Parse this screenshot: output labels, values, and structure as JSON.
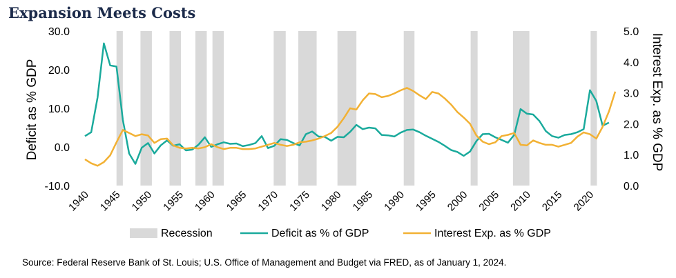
{
  "chart_data": {
    "type": "line",
    "title": "Expansion Meets Costs",
    "ylabel": "Deficit as % GDP",
    "y2label": "Interest Exp. as % GDP",
    "ylim": [
      -10,
      30
    ],
    "y2lim": [
      0,
      5
    ],
    "xlim": [
      1940,
      2024
    ],
    "yticks": [
      "-10.0",
      "0.0",
      "10.0",
      "20.0",
      "30.0"
    ],
    "y2ticks": [
      "0.0",
      "1.0",
      "2.0",
      "3.0",
      "4.0",
      "5.0"
    ],
    "xticks": [
      "1940",
      "1945",
      "1950",
      "1955",
      "1960",
      "1965",
      "1970",
      "1975",
      "1980",
      "1985",
      "1990",
      "1995",
      "2000",
      "2005",
      "2010",
      "2015",
      "2020"
    ],
    "legend_position": "bottom",
    "legend": [
      "Recession",
      "Deficit as % of GDP",
      "Interest Exp. as % GDP"
    ],
    "recessions": [
      [
        1945,
        1946
      ],
      [
        1948.8,
        1950.6
      ],
      [
        1953.4,
        1955.2
      ],
      [
        1957.5,
        1959.3
      ],
      [
        1960.2,
        1962
      ],
      [
        1969.9,
        1971.8
      ],
      [
        1973.8,
        1976.7
      ],
      [
        1980,
        1983
      ],
      [
        1990.5,
        1992.2
      ],
      [
        2001.1,
        2002.2
      ],
      [
        2007.8,
        2010.4
      ],
      [
        2020.1,
        2021.1
      ]
    ],
    "series": [
      {
        "name": "Deficit as % of GDP",
        "axis": "left",
        "color": "#1aaa9c",
        "x": [
          1940,
          1941,
          1942,
          1943,
          1944,
          1945,
          1946,
          1947,
          1948,
          1949,
          1950,
          1951,
          1952,
          1953,
          1954,
          1955,
          1956,
          1957,
          1958,
          1959,
          1960,
          1961,
          1962,
          1963,
          1964,
          1965,
          1966,
          1967,
          1968,
          1969,
          1970,
          1971,
          1972,
          1973,
          1974,
          1975,
          1976,
          1977,
          1978,
          1979,
          1980,
          1981,
          1982,
          1983,
          1984,
          1985,
          1986,
          1987,
          1988,
          1989,
          1990,
          1991,
          1992,
          1993,
          1994,
          1995,
          1996,
          1997,
          1998,
          1999,
          2000,
          2001,
          2002,
          2003,
          2004,
          2005,
          2006,
          2007,
          2008,
          2009,
          2010,
          2011,
          2012,
          2013,
          2014,
          2015,
          2016,
          2017,
          2018,
          2019,
          2020,
          2021,
          2022,
          2023
        ],
        "values": [
          2.8,
          3.8,
          12.8,
          26.8,
          21.1,
          20.8,
          7.0,
          -1.7,
          -4.4,
          -0.2,
          1.0,
          -1.7,
          0.4,
          1.7,
          0.3,
          0.7,
          -0.9,
          -0.7,
          0.6,
          2.5,
          0.0,
          0.7,
          1.2,
          0.8,
          0.9,
          0.2,
          0.5,
          1.0,
          2.8,
          -0.3,
          0.3,
          2.0,
          1.8,
          1.0,
          0.4,
          3.3,
          4.0,
          2.7,
          2.6,
          1.6,
          2.6,
          2.5,
          3.9,
          5.7,
          4.6,
          5.0,
          4.8,
          3.1,
          3.0,
          2.7,
          3.7,
          4.4,
          4.5,
          3.8,
          2.9,
          2.1,
          1.3,
          0.3,
          -0.8,
          -1.3,
          -2.3,
          -1.2,
          1.5,
          3.3,
          3.4,
          2.5,
          1.8,
          1.1,
          3.1,
          9.8,
          8.6,
          8.4,
          6.7,
          4.1,
          2.8,
          2.4,
          3.1,
          3.3,
          3.8,
          4.6,
          14.7,
          11.9,
          5.5,
          6.3
        ]
      },
      {
        "name": "Interest Exp. as % GDP",
        "axis": "right",
        "color": "#f2b134",
        "x": [
          1940,
          1941,
          1942,
          1943,
          1944,
          1945,
          1946,
          1947,
          1948,
          1949,
          1950,
          1951,
          1952,
          1953,
          1954,
          1955,
          1956,
          1957,
          1958,
          1959,
          1960,
          1961,
          1962,
          1963,
          1964,
          1965,
          1966,
          1967,
          1968,
          1969,
          1970,
          1971,
          1972,
          1973,
          1974,
          1975,
          1976,
          1977,
          1978,
          1979,
          1980,
          1981,
          1982,
          1983,
          1984,
          1985,
          1986,
          1987,
          1988,
          1989,
          1990,
          1991,
          1992,
          1993,
          1994,
          1995,
          1996,
          1997,
          1998,
          1999,
          2000,
          2001,
          2002,
          2003,
          2004,
          2005,
          2006,
          2007,
          2008,
          2009,
          2010,
          2011,
          2012,
          2013,
          2014,
          2015,
          2016,
          2017,
          2018,
          2019,
          2020,
          2021,
          2022,
          2023,
          2024
        ],
        "values": [
          0.85,
          0.72,
          0.64,
          0.76,
          0.98,
          1.4,
          1.8,
          1.7,
          1.6,
          1.66,
          1.62,
          1.38,
          1.5,
          1.52,
          1.3,
          1.22,
          1.2,
          1.22,
          1.2,
          1.24,
          1.34,
          1.24,
          1.18,
          1.22,
          1.22,
          1.18,
          1.18,
          1.2,
          1.26,
          1.32,
          1.38,
          1.32,
          1.28,
          1.32,
          1.4,
          1.42,
          1.46,
          1.52,
          1.6,
          1.7,
          1.9,
          2.18,
          2.5,
          2.46,
          2.76,
          2.98,
          2.96,
          2.86,
          2.9,
          2.98,
          3.08,
          3.16,
          3.06,
          2.92,
          2.8,
          3.03,
          2.98,
          2.82,
          2.62,
          2.38,
          2.2,
          2.0,
          1.62,
          1.42,
          1.34,
          1.4,
          1.6,
          1.64,
          1.7,
          1.32,
          1.3,
          1.46,
          1.38,
          1.32,
          1.32,
          1.26,
          1.32,
          1.38,
          1.58,
          1.72,
          1.66,
          1.52,
          1.9,
          2.4,
          3.04
        ]
      }
    ]
  },
  "source": "Source: Federal Reserve Bank of St. Louis; U.S. Office of Management and Budget via FRED, as of January 1, 2024."
}
